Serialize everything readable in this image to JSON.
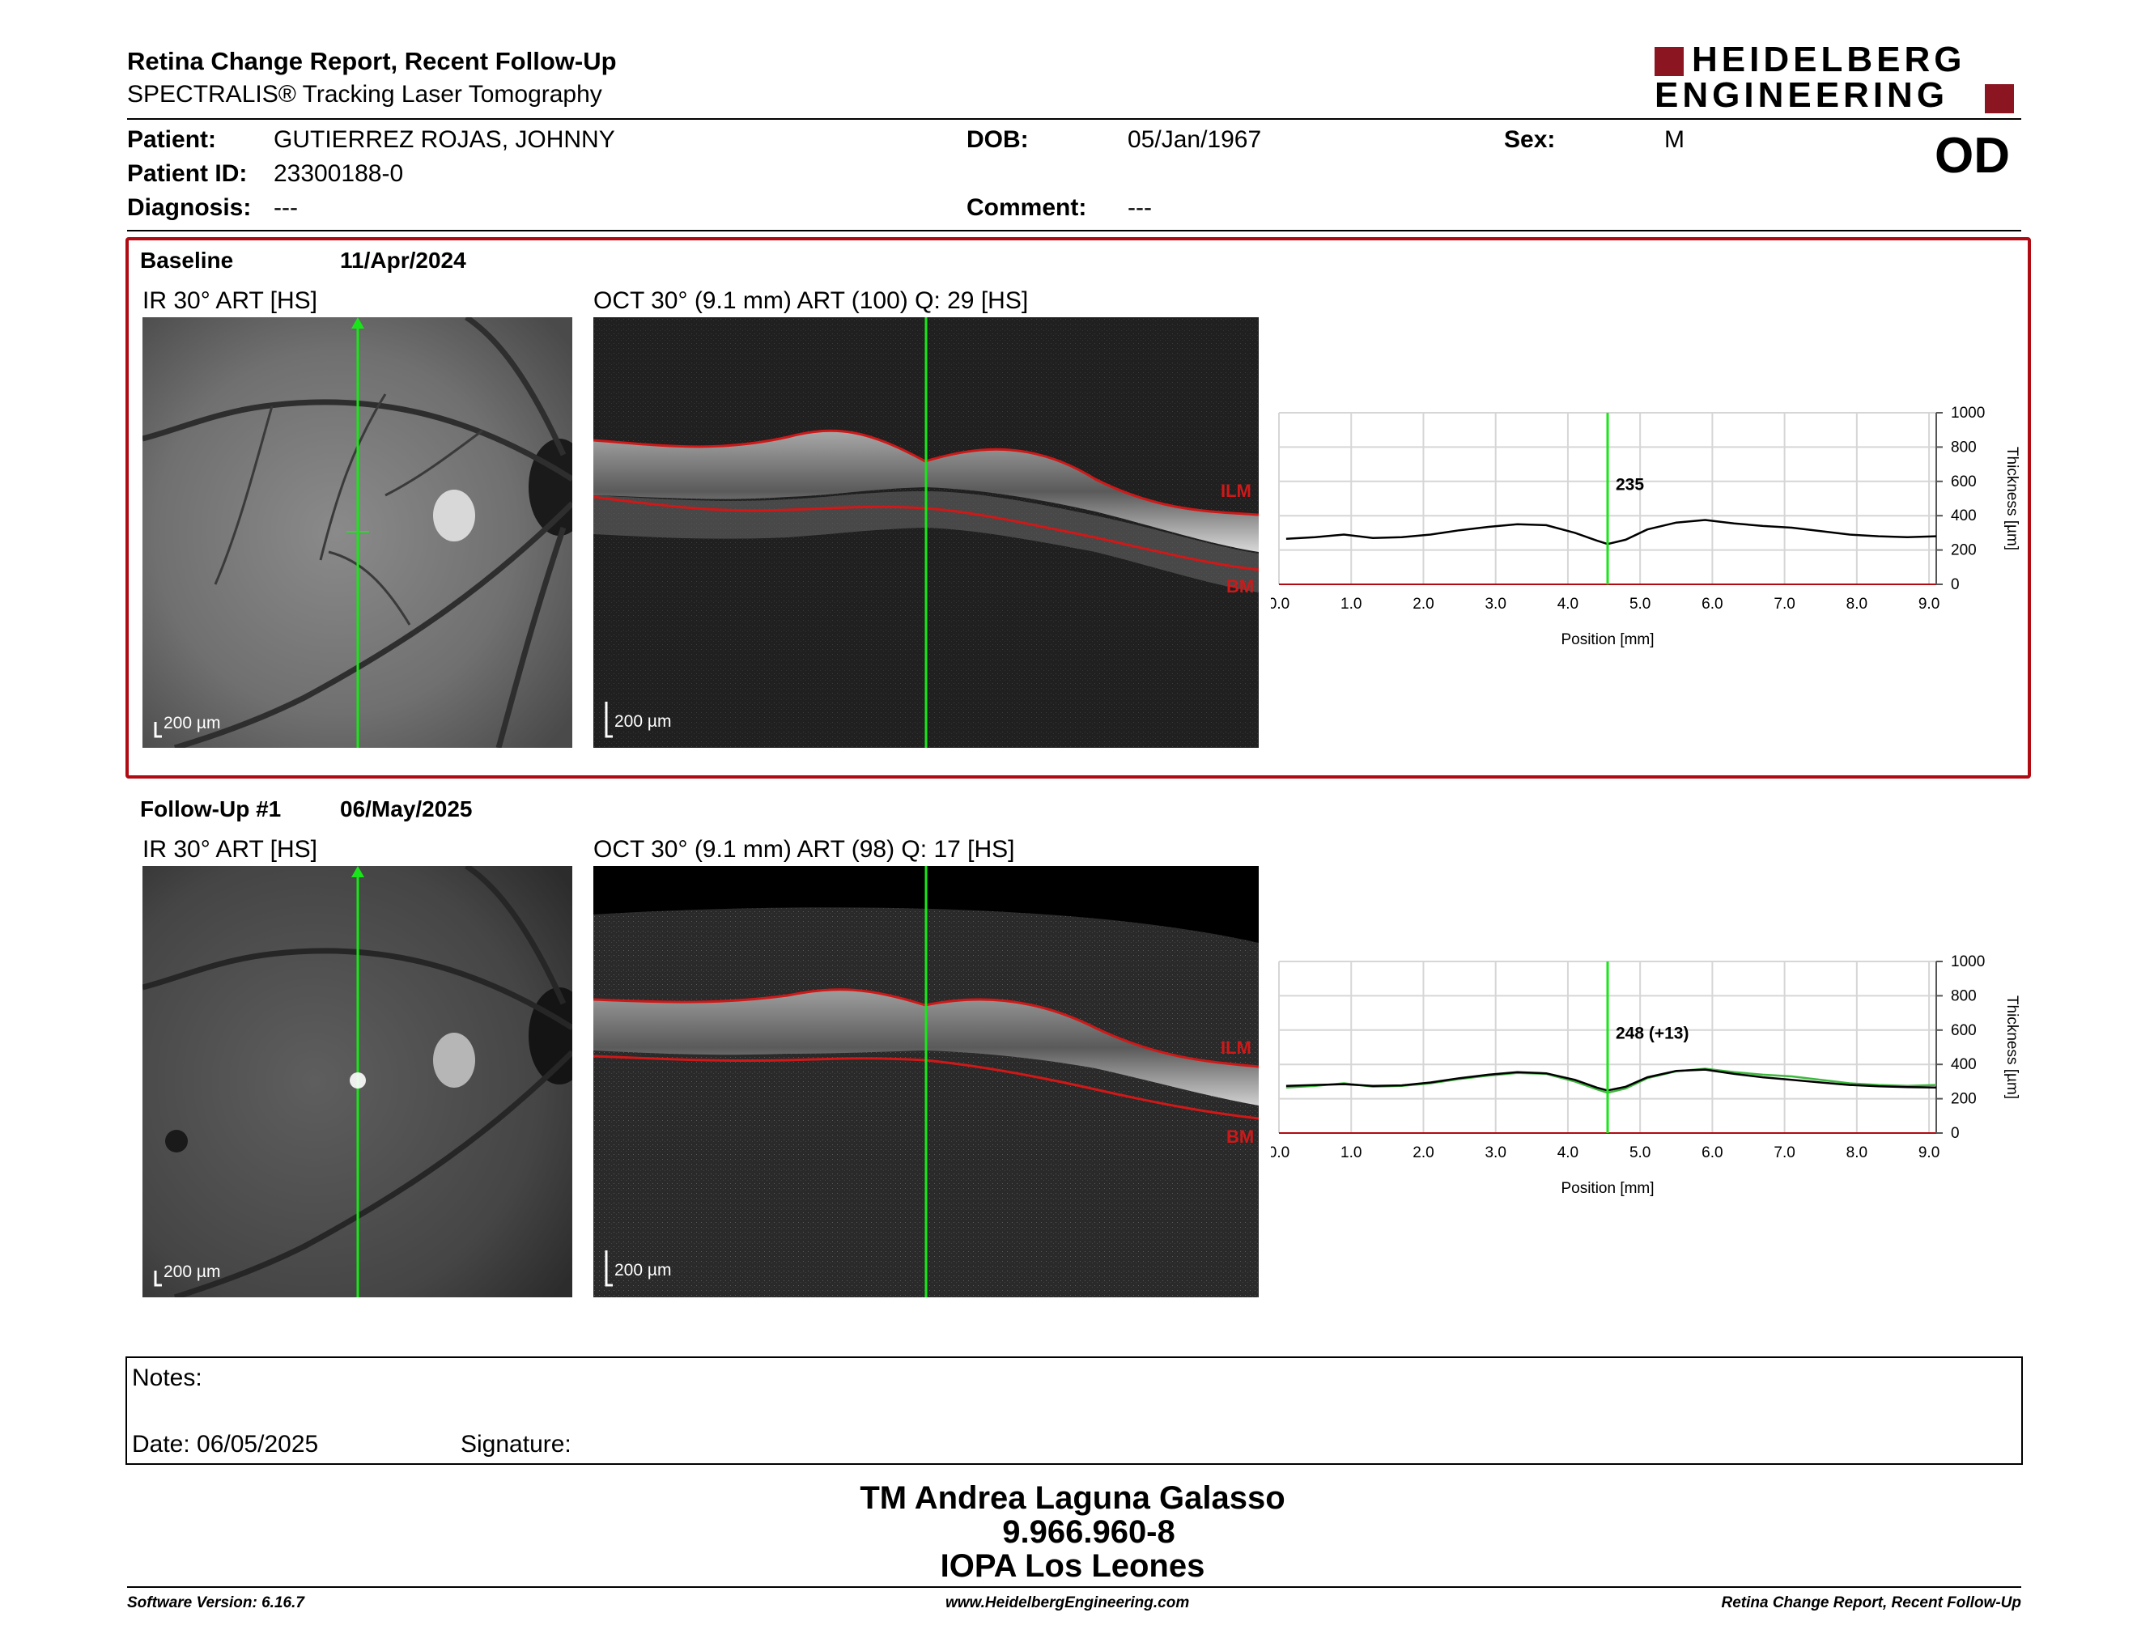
{
  "header": {
    "title": "Retina Change Report, Recent Follow-Up",
    "subtitle": "SPECTRALIS® Tracking Laser Tomography",
    "logo_line1": "HEIDELBERG",
    "logo_line2": "ENGINEERING"
  },
  "patient": {
    "patient_label": "Patient:",
    "patient_value": "GUTIERREZ ROJAS, JOHNNY",
    "id_label": "Patient ID:",
    "id_value": "23300188-0",
    "diagnosis_label": "Diagnosis:",
    "diagnosis_value": "---",
    "dob_label": "DOB:",
    "dob_value": "05/Jan/1967",
    "comment_label": "Comment:",
    "comment_value": "---",
    "sex_label": "Sex:",
    "sex_value": "M",
    "eye": "OD"
  },
  "exams": [
    {
      "label": "Baseline",
      "date": "11/Apr/2024",
      "ir_title": "IR 30° ART [HS]",
      "oct_title": "OCT 30° (9.1 mm) ART (100) Q: 29 [HS]",
      "scale_label": "200 µm",
      "ilm_label": "ILM",
      "bm_label": "BM",
      "readout": "235"
    },
    {
      "label": "Follow-Up #1",
      "date": "06/May/2025",
      "ir_title": "IR 30° ART [HS]",
      "oct_title": "OCT 30° (9.1 mm) ART (98) Q: 17 [HS]",
      "scale_label": "200 µm",
      "ilm_label": "ILM",
      "bm_label": "BM",
      "readout": "248 (+13)"
    }
  ],
  "chart_data": [
    {
      "type": "line",
      "xlabel": "Position [mm]",
      "ylabel": "Thickness [µm]",
      "xlim": [
        0,
        9.1
      ],
      "ylim": [
        0,
        1000
      ],
      "x_ticks": [
        "0.0",
        "1.0",
        "2.0",
        "3.0",
        "4.0",
        "5.0",
        "6.0",
        "7.0",
        "8.0",
        "9.0"
      ],
      "y_ticks": [
        "0",
        "200",
        "400",
        "600",
        "800",
        "1000"
      ],
      "marker_x": 4.55,
      "marker_label": "235",
      "series": [
        {
          "color": "#000000",
          "x": [
            0.1,
            0.5,
            0.9,
            1.3,
            1.7,
            2.1,
            2.5,
            2.9,
            3.3,
            3.7,
            4.1,
            4.4,
            4.55,
            4.8,
            5.1,
            5.5,
            5.9,
            6.3,
            6.7,
            7.1,
            7.5,
            7.9,
            8.3,
            8.7,
            9.1
          ],
          "y": [
            265,
            275,
            290,
            270,
            275,
            290,
            315,
            335,
            350,
            345,
            300,
            255,
            235,
            260,
            320,
            360,
            375,
            355,
            340,
            330,
            310,
            290,
            280,
            275,
            280
          ]
        }
      ]
    },
    {
      "type": "line",
      "xlabel": "Position [mm]",
      "ylabel": "Thickness [µm]",
      "xlim": [
        0,
        9.1
      ],
      "ylim": [
        0,
        1000
      ],
      "x_ticks": [
        "0.0",
        "1.0",
        "2.0",
        "3.0",
        "4.0",
        "5.0",
        "6.0",
        "7.0",
        "8.0",
        "9.0"
      ],
      "y_ticks": [
        "0",
        "200",
        "400",
        "600",
        "800",
        "1000"
      ],
      "marker_x": 4.55,
      "marker_label": "248 (+13)",
      "series": [
        {
          "color": "#3db83d",
          "x": [
            0.1,
            0.5,
            0.9,
            1.3,
            1.7,
            2.1,
            2.5,
            2.9,
            3.3,
            3.7,
            4.1,
            4.4,
            4.55,
            4.8,
            5.1,
            5.5,
            5.9,
            6.3,
            6.7,
            7.1,
            7.5,
            7.9,
            8.3,
            8.7,
            9.1
          ],
          "y": [
            265,
            275,
            290,
            270,
            275,
            290,
            315,
            335,
            350,
            345,
            300,
            255,
            235,
            260,
            320,
            360,
            375,
            355,
            340,
            330,
            310,
            290,
            280,
            275,
            280
          ]
        },
        {
          "color": "#000000",
          "x": [
            0.1,
            0.5,
            0.9,
            1.3,
            1.7,
            2.1,
            2.5,
            2.9,
            3.3,
            3.7,
            4.1,
            4.4,
            4.55,
            4.8,
            5.1,
            5.5,
            5.9,
            6.3,
            6.7,
            7.1,
            7.5,
            7.9,
            8.3,
            8.7,
            9.1
          ],
          "y": [
            275,
            280,
            285,
            275,
            278,
            295,
            320,
            340,
            355,
            348,
            310,
            265,
            248,
            270,
            325,
            362,
            370,
            345,
            325,
            310,
            295,
            280,
            272,
            268,
            265
          ]
        }
      ]
    }
  ],
  "notes": {
    "notes_label": "Notes:",
    "date_label": "Date: 06/05/2025",
    "signature_label": "Signature:"
  },
  "signatory": {
    "line1": "TM Andrea Laguna Galasso",
    "line2": "9.966.960-8",
    "line3": "IOPA Los Leones"
  },
  "footer": {
    "left": "Software Version: 6.16.7",
    "center": "www.HeidelbergEngineering.com",
    "right": "Retina Change Report, Recent Follow-Up"
  },
  "colors": {
    "accent_red": "#b00a12",
    "logo_red": "#8b1520",
    "scan_green": "#19e619",
    "ilm_red": "#d01818"
  }
}
